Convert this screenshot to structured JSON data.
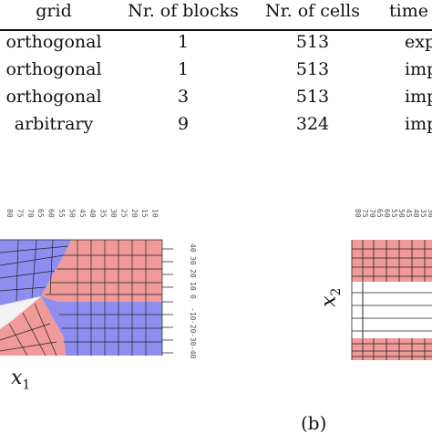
{
  "table": {
    "headers": [
      "grid",
      "Nr. of blocks",
      "Nr. of cells",
      "time"
    ],
    "rows": [
      [
        "orthogonal",
        "1",
        "513",
        "exp"
      ],
      [
        "orthogonal",
        "1",
        "513",
        "imp"
      ],
      [
        "orthogonal",
        "3",
        "513",
        "imp"
      ],
      [
        "arbitrary",
        "9",
        "324",
        "imp"
      ]
    ]
  },
  "figure_left": {
    "xlabel_var": "x",
    "xlabel_sub": "1",
    "ticks_right": [
      "40",
      "30",
      "20",
      "10",
      "0",
      "-10",
      "-20",
      "-30",
      "-40"
    ],
    "ticks_top": [
      "80",
      "75",
      "70",
      "65",
      "60",
      "55",
      "50",
      "45",
      "40",
      "35",
      "30",
      "25",
      "20",
      "15",
      "10"
    ]
  },
  "figure_right": {
    "ylabel_var": "x",
    "ylabel_sub": "2",
    "ticks_top": [
      "80",
      "75",
      "70",
      "65",
      "60",
      "55",
      "50",
      "45",
      "40",
      "35",
      "30"
    ],
    "caption": "(b)"
  },
  "colors": {
    "red_block": "#f09a9a",
    "blue_block": "#8e8ef0",
    "grid_line": "#222222"
  }
}
